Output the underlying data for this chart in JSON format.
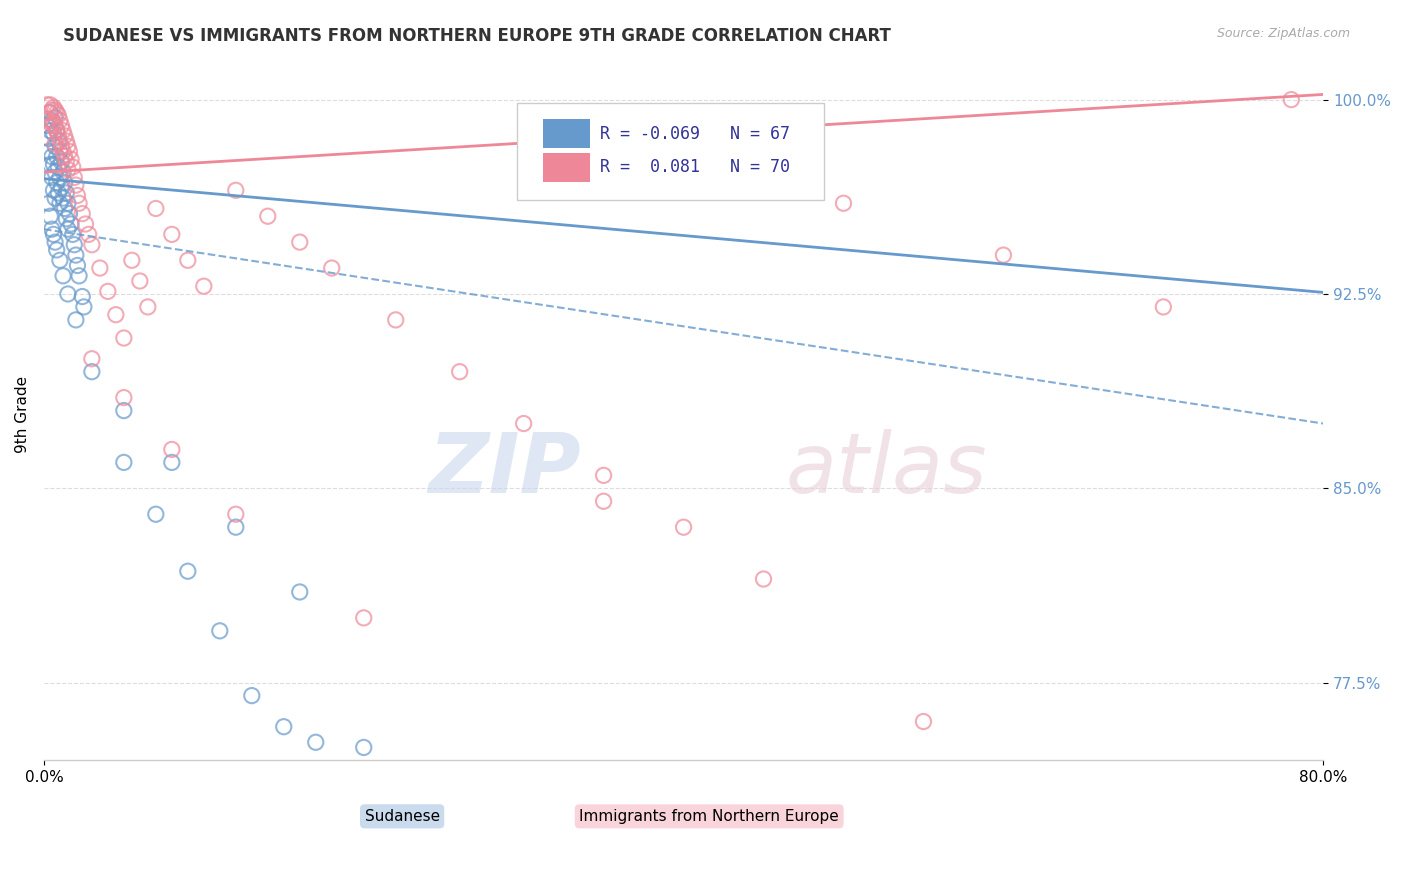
{
  "title": "SUDANESE VS IMMIGRANTS FROM NORTHERN EUROPE 9TH GRADE CORRELATION CHART",
  "source": "Source: ZipAtlas.com",
  "ylabel": "9th Grade",
  "xlim": [
    0.0,
    0.8
  ],
  "ylim": [
    0.745,
    1.012
  ],
  "yticks": [
    0.775,
    0.85,
    0.925,
    1.0
  ],
  "ytick_labels": [
    "77.5%",
    "85.0%",
    "92.5%",
    "100.0%"
  ],
  "xticks": [
    0.0,
    0.8
  ],
  "xtick_labels": [
    "0.0%",
    "80.0%"
  ],
  "blue_color": "#6699CC",
  "pink_color": "#EE8899",
  "blue_R": -0.069,
  "blue_N": 67,
  "pink_R": 0.081,
  "pink_N": 70,
  "blue_label": "Sudanese",
  "pink_label": "Immigrants from Northern Europe",
  "blue_trend": [
    0.9695,
    0.9256
  ],
  "pink_trend": [
    0.972,
    1.002
  ],
  "blue_solid_trend": [
    0.9695,
    0.9256
  ],
  "background_color": "#FFFFFF",
  "grid_color": "#DDDDDD",
  "blue_scatter_x": [
    0.002,
    0.003,
    0.003,
    0.004,
    0.004,
    0.004,
    0.005,
    0.005,
    0.005,
    0.006,
    0.006,
    0.006,
    0.007,
    0.007,
    0.007,
    0.007,
    0.008,
    0.008,
    0.008,
    0.009,
    0.009,
    0.009,
    0.01,
    0.01,
    0.01,
    0.011,
    0.011,
    0.012,
    0.012,
    0.013,
    0.013,
    0.014,
    0.014,
    0.015,
    0.015,
    0.016,
    0.017,
    0.018,
    0.019,
    0.02,
    0.021,
    0.022,
    0.024,
    0.025,
    0.003,
    0.004,
    0.005,
    0.006,
    0.007,
    0.008,
    0.01,
    0.012,
    0.015,
    0.02,
    0.03,
    0.05,
    0.07,
    0.09,
    0.11,
    0.13,
    0.15,
    0.17,
    0.2,
    0.05,
    0.08,
    0.12,
    0.16
  ],
  "blue_scatter_y": [
    0.99,
    0.985,
    0.98,
    0.995,
    0.988,
    0.975,
    0.992,
    0.978,
    0.97,
    0.987,
    0.975,
    0.965,
    0.993,
    0.982,
    0.972,
    0.962,
    0.988,
    0.978,
    0.968,
    0.984,
    0.974,
    0.964,
    0.98,
    0.97,
    0.96,
    0.976,
    0.966,
    0.972,
    0.962,
    0.968,
    0.958,
    0.964,
    0.954,
    0.96,
    0.95,
    0.956,
    0.952,
    0.948,
    0.944,
    0.94,
    0.936,
    0.932,
    0.924,
    0.92,
    0.96,
    0.955,
    0.95,
    0.948,
    0.945,
    0.942,
    0.938,
    0.932,
    0.925,
    0.915,
    0.895,
    0.86,
    0.84,
    0.818,
    0.795,
    0.77,
    0.758,
    0.752,
    0.75,
    0.88,
    0.86,
    0.835,
    0.81
  ],
  "pink_scatter_x": [
    0.002,
    0.003,
    0.003,
    0.004,
    0.005,
    0.005,
    0.006,
    0.006,
    0.007,
    0.007,
    0.007,
    0.008,
    0.008,
    0.009,
    0.009,
    0.01,
    0.01,
    0.011,
    0.011,
    0.012,
    0.012,
    0.013,
    0.013,
    0.014,
    0.014,
    0.015,
    0.015,
    0.016,
    0.017,
    0.018,
    0.019,
    0.02,
    0.021,
    0.022,
    0.024,
    0.026,
    0.028,
    0.03,
    0.035,
    0.04,
    0.045,
    0.05,
    0.055,
    0.06,
    0.065,
    0.07,
    0.08,
    0.09,
    0.1,
    0.12,
    0.14,
    0.16,
    0.18,
    0.22,
    0.26,
    0.3,
    0.35,
    0.4,
    0.45,
    0.5,
    0.6,
    0.7,
    0.78,
    0.03,
    0.05,
    0.08,
    0.12,
    0.2,
    0.35,
    0.55
  ],
  "pink_scatter_y": [
    0.998,
    0.995,
    0.992,
    0.998,
    0.996,
    0.99,
    0.997,
    0.991,
    0.996,
    0.99,
    0.983,
    0.995,
    0.988,
    0.994,
    0.986,
    0.992,
    0.984,
    0.99,
    0.982,
    0.988,
    0.98,
    0.986,
    0.978,
    0.984,
    0.976,
    0.982,
    0.973,
    0.98,
    0.977,
    0.974,
    0.97,
    0.967,
    0.963,
    0.96,
    0.956,
    0.952,
    0.948,
    0.944,
    0.935,
    0.926,
    0.917,
    0.908,
    0.938,
    0.93,
    0.92,
    0.958,
    0.948,
    0.938,
    0.928,
    0.965,
    0.955,
    0.945,
    0.935,
    0.915,
    0.895,
    0.875,
    0.855,
    0.835,
    0.815,
    0.96,
    0.94,
    0.92,
    1.0,
    0.9,
    0.885,
    0.865,
    0.84,
    0.8,
    0.845,
    0.76
  ]
}
